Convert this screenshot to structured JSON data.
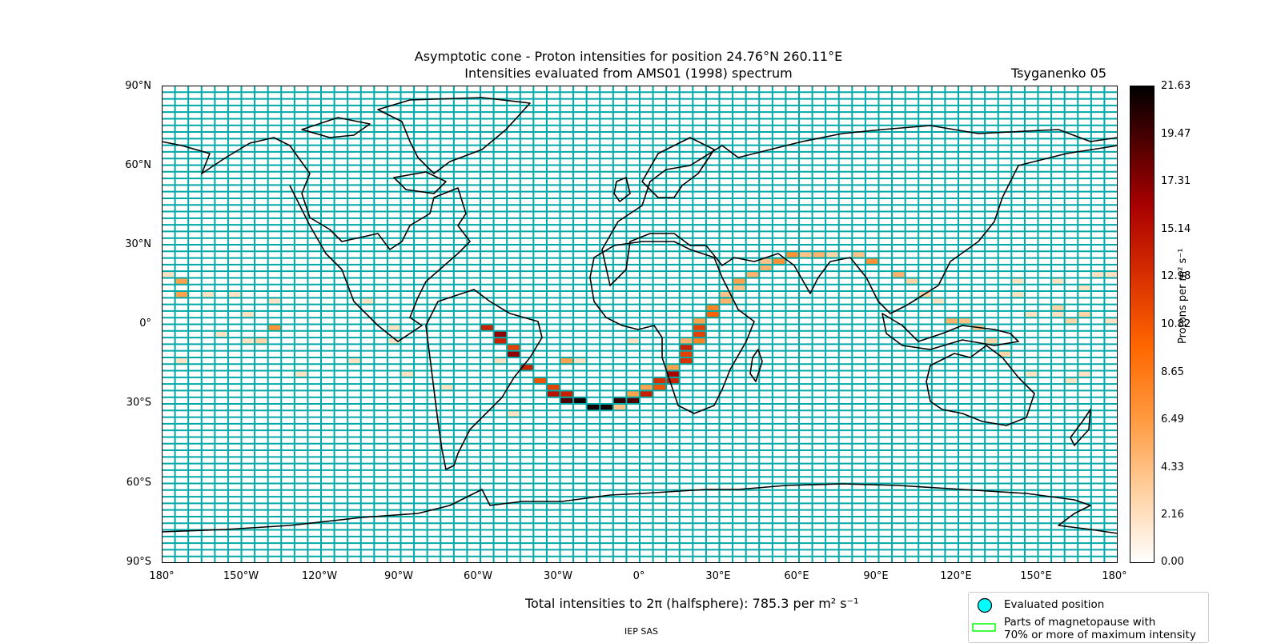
{
  "title": {
    "line1": "Asymptotic cone - Proton intensities for position 24.76°N 260.11°E",
    "line2": "Intensities evaluated from AMS01 (1998) spectrum",
    "model": "Tsyganenko 05"
  },
  "axes": {
    "lat_labels": [
      "90°N",
      "60°N",
      "30°N",
      "0°",
      "30°S",
      "60°S",
      "90°S"
    ],
    "lon_labels": [
      "180°",
      "150°W",
      "120°W",
      "90°W",
      "60°W",
      "30°W",
      "0°",
      "30°E",
      "60°E",
      "90°E",
      "120°E",
      "150°E",
      "180°"
    ]
  },
  "colorbar": {
    "label": "Protons per m² s⁻¹",
    "ticks": [
      "21.63",
      "19.47",
      "17.31",
      "15.14",
      "12.98",
      "10.82",
      "8.65",
      "6.49",
      "4.33",
      "2.16",
      "0.00"
    ],
    "min": 0.0,
    "max": 21.63,
    "colormap": "gist_heat_r"
  },
  "total_intensity_text": "Total intensities to 2π (halfsphere): 785.3 per m² s⁻¹",
  "legend": {
    "evaluated_position": "Evaluated position",
    "magnetopause_line1": "Parts of magnetopause with",
    "magnetopause_line2": "70% or more of maximum intensity"
  },
  "footer": "IEP SAS",
  "colors": {
    "grid": "#00a8a8",
    "marker_fill": "#00ffff",
    "magnetopause_edge": "#00ff00",
    "coastline": "#000000"
  },
  "map_data": {
    "projection": "PlateCarree",
    "grid_cell_deg": {
      "lon": 5,
      "lat": 2.5
    },
    "cells": [
      [
        -60,
        -1,
        14
      ],
      [
        -55,
        -4,
        17
      ],
      [
        -55,
        -6,
        14
      ],
      [
        -50,
        -9,
        12
      ],
      [
        -50,
        -11,
        17
      ],
      [
        -45,
        -15,
        17
      ],
      [
        -45,
        -17,
        14
      ],
      [
        -40,
        -20,
        20
      ],
      [
        -40,
        -22,
        11
      ],
      [
        -35,
        -24,
        12
      ],
      [
        -35,
        -26,
        15
      ],
      [
        -30,
        -26,
        14
      ],
      [
        -30,
        -28,
        19
      ],
      [
        -25,
        -28,
        21
      ],
      [
        -20,
        -30,
        21
      ],
      [
        -15,
        -30,
        21
      ],
      [
        -10,
        -28,
        20
      ],
      [
        -10,
        -30,
        4
      ],
      [
        -5,
        -28,
        19
      ],
      [
        -5,
        -26,
        6
      ],
      [
        0,
        -26,
        14
      ],
      [
        0,
        -24,
        6
      ],
      [
        5,
        -24,
        11
      ],
      [
        5,
        -22,
        13
      ],
      [
        10,
        -20,
        14
      ],
      [
        10,
        -18,
        16
      ],
      [
        10,
        -15,
        6
      ],
      [
        15,
        -13,
        13
      ],
      [
        15,
        -11,
        12
      ],
      [
        15,
        -9,
        14
      ],
      [
        15,
        -6,
        5
      ],
      [
        20,
        -6,
        8
      ],
      [
        20,
        -4,
        12
      ],
      [
        20,
        -1,
        12
      ],
      [
        20,
        1,
        6
      ],
      [
        25,
        4,
        10
      ],
      [
        25,
        6,
        8
      ],
      [
        30,
        9,
        5
      ],
      [
        30,
        11,
        4
      ],
      [
        35,
        14,
        4
      ],
      [
        35,
        17,
        6
      ],
      [
        40,
        19,
        5
      ],
      [
        45,
        21,
        5
      ],
      [
        45,
        24,
        4
      ],
      [
        50,
        24,
        7
      ],
      [
        55,
        26,
        7
      ],
      [
        60,
        26,
        4
      ],
      [
        65,
        26,
        5
      ],
      [
        70,
        26,
        3
      ],
      [
        80,
        26,
        4
      ],
      [
        85,
        24,
        7
      ],
      [
        95,
        19,
        5
      ],
      [
        100,
        16,
        3
      ],
      [
        105,
        11,
        3
      ],
      [
        110,
        9,
        2
      ],
      [
        115,
        1,
        5
      ],
      [
        120,
        1,
        4
      ],
      [
        125,
        -1,
        4
      ],
      [
        130,
        -6,
        3
      ],
      [
        135,
        -11,
        3
      ],
      [
        -175,
        16,
        6
      ],
      [
        -175,
        11,
        6
      ],
      [
        -175,
        -14,
        2
      ],
      [
        -165,
        11,
        2
      ],
      [
        -160,
        -4,
        2
      ],
      [
        -155,
        11,
        2
      ],
      [
        -150,
        4,
        2
      ],
      [
        -150,
        -6,
        2
      ],
      [
        -145,
        -6,
        3
      ],
      [
        -140,
        -1,
        7
      ],
      [
        -140,
        9,
        2
      ],
      [
        -130,
        -19,
        2
      ],
      [
        -110,
        -14,
        2
      ],
      [
        -105,
        9,
        2
      ],
      [
        -95,
        -1,
        2
      ],
      [
        -95,
        -6,
        2
      ],
      [
        -90,
        -19,
        2
      ],
      [
        -75,
        -24,
        2
      ],
      [
        -55,
        -14,
        2
      ],
      [
        -50,
        -34,
        2
      ],
      [
        -30,
        -14,
        6
      ],
      [
        -25,
        -14,
        2
      ],
      [
        -5,
        -6,
        2
      ],
      [
        140,
        16,
        2
      ],
      [
        140,
        11,
        2
      ],
      [
        145,
        4,
        2
      ],
      [
        145,
        -19,
        2
      ],
      [
        155,
        16,
        2
      ],
      [
        155,
        6,
        3
      ],
      [
        155,
        4,
        2
      ],
      [
        160,
        1,
        3
      ],
      [
        165,
        4,
        3
      ],
      [
        160,
        -21,
        2
      ],
      [
        165,
        -19,
        2
      ],
      [
        165,
        14,
        2
      ],
      [
        170,
        19,
        2
      ],
      [
        175,
        19,
        2
      ],
      [
        175,
        1,
        2
      ],
      [
        -180,
        19,
        2
      ]
    ]
  }
}
